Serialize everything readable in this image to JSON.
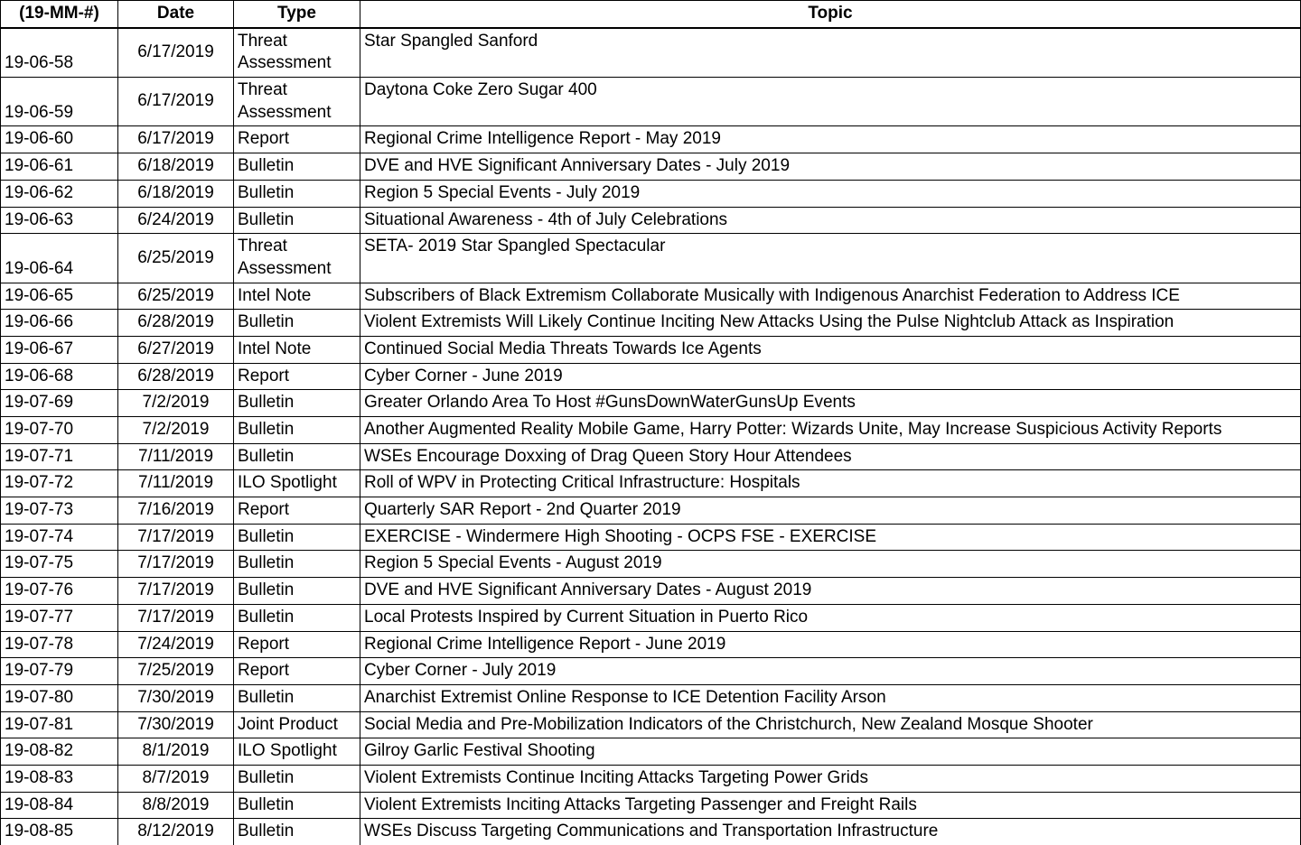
{
  "table": {
    "headers": {
      "id": "(19-MM-#)",
      "date": "Date",
      "type": "Type",
      "topic": "Topic"
    },
    "column_widths": {
      "id": "130px",
      "date": "128px",
      "type": "140px",
      "topic": "auto"
    },
    "font_size": 19,
    "border_color": "#000000",
    "background_color": "#ffffff",
    "text_color": "#000000",
    "rows": [
      {
        "id": "19-06-58",
        "date": "6/17/2019",
        "type": "Threat Assessment",
        "topic": "Star Spangled Sanford"
      },
      {
        "id": "19-06-59",
        "date": "6/17/2019",
        "type": "Threat Assessment",
        "topic": "Daytona Coke Zero Sugar 400"
      },
      {
        "id": "19-06-60",
        "date": "6/17/2019",
        "type": "Report",
        "topic": "Regional Crime Intelligence Report - May 2019"
      },
      {
        "id": "19-06-61",
        "date": "6/18/2019",
        "type": "Bulletin",
        "topic": "DVE and HVE Significant Anniversary Dates - July 2019"
      },
      {
        "id": "19-06-62",
        "date": "6/18/2019",
        "type": "Bulletin",
        "topic": "Region 5 Special Events - July 2019"
      },
      {
        "id": "19-06-63",
        "date": "6/24/2019",
        "type": "Bulletin",
        "topic": "Situational Awareness - 4th of July Celebrations"
      },
      {
        "id": "19-06-64",
        "date": "6/25/2019",
        "type": "Threat Assessment",
        "topic": "SETA- 2019 Star Spangled Spectacular"
      },
      {
        "id": "19-06-65",
        "date": "6/25/2019",
        "type": "Intel Note",
        "topic": "Subscribers of Black Extremism Collaborate Musically with Indigenous Anarchist Federation to Address ICE"
      },
      {
        "id": "19-06-66",
        "date": "6/28/2019",
        "type": "Bulletin",
        "topic": "Violent Extremists Will Likely Continue Inciting New Attacks Using the Pulse Nightclub Attack as Inspiration"
      },
      {
        "id": "19-06-67",
        "date": "6/27/2019",
        "type": "Intel Note",
        "topic": "Continued Social Media Threats Towards Ice Agents"
      },
      {
        "id": "19-06-68",
        "date": "6/28/2019",
        "type": "Report",
        "topic": "Cyber Corner - June 2019"
      },
      {
        "id": "19-07-69",
        "date": "7/2/2019",
        "type": "Bulletin",
        "topic": "Greater Orlando Area To Host #GunsDownWaterGunsUp Events"
      },
      {
        "id": "19-07-70",
        "date": "7/2/2019",
        "type": "Bulletin",
        "topic": "Another Augmented Reality Mobile Game, Harry Potter: Wizards Unite, May Increase Suspicious Activity Reports"
      },
      {
        "id": "19-07-71",
        "date": "7/11/2019",
        "type": "Bulletin",
        "topic": "WSEs Encourage Doxxing of Drag Queen Story Hour Attendees"
      },
      {
        "id": "19-07-72",
        "date": "7/11/2019",
        "type": "ILO Spotlight",
        "topic": "Roll of WPV in Protecting Critical Infrastructure:  Hospitals"
      },
      {
        "id": "19-07-73",
        "date": "7/16/2019",
        "type": "Report",
        "topic": "Quarterly SAR Report - 2nd Quarter 2019"
      },
      {
        "id": "19-07-74",
        "date": "7/17/2019",
        "type": "Bulletin",
        "topic": "EXERCISE - Windermere High Shooting - OCPS FSE - EXERCISE"
      },
      {
        "id": "19-07-75",
        "date": "7/17/2019",
        "type": "Bulletin",
        "topic": "Region 5 Special Events - August 2019"
      },
      {
        "id": "19-07-76",
        "date": "7/17/2019",
        "type": "Bulletin",
        "topic": "DVE and HVE Significant Anniversary Dates - August 2019"
      },
      {
        "id": "19-07-77",
        "date": "7/17/2019",
        "type": "Bulletin",
        "topic": "Local Protests Inspired by Current Situation in Puerto Rico"
      },
      {
        "id": "19-07-78",
        "date": "7/24/2019",
        "type": "Report",
        "topic": "Regional Crime Intelligence Report - June 2019"
      },
      {
        "id": "19-07-79",
        "date": "7/25/2019",
        "type": "Report",
        "topic": "Cyber Corner - July 2019"
      },
      {
        "id": "19-07-80",
        "date": "7/30/2019",
        "type": "Bulletin",
        "topic": "Anarchist Extremist Online Response to ICE Detention Facility Arson"
      },
      {
        "id": "19-07-81",
        "date": "7/30/2019",
        "type": "Joint Product",
        "topic": "Social Media and Pre-Mobilization Indicators of the Christchurch, New Zealand Mosque Shooter"
      },
      {
        "id": "19-08-82",
        "date": "8/1/2019",
        "type": "ILO Spotlight",
        "topic": "Gilroy Garlic Festival Shooting"
      },
      {
        "id": "19-08-83",
        "date": "8/7/2019",
        "type": "Bulletin",
        "topic": "Violent Extremists Continue Inciting Attacks Targeting Power Grids"
      },
      {
        "id": "19-08-84",
        "date": "8/8/2019",
        "type": "Bulletin",
        "topic": "Violent Extremists Inciting Attacks Targeting Passenger and Freight Rails"
      },
      {
        "id": "19-08-85",
        "date": "8/12/2019",
        "type": "Bulletin",
        "topic": "WSEs Discuss Targeting Communications and Transportation Infrastructure"
      }
    ]
  }
}
